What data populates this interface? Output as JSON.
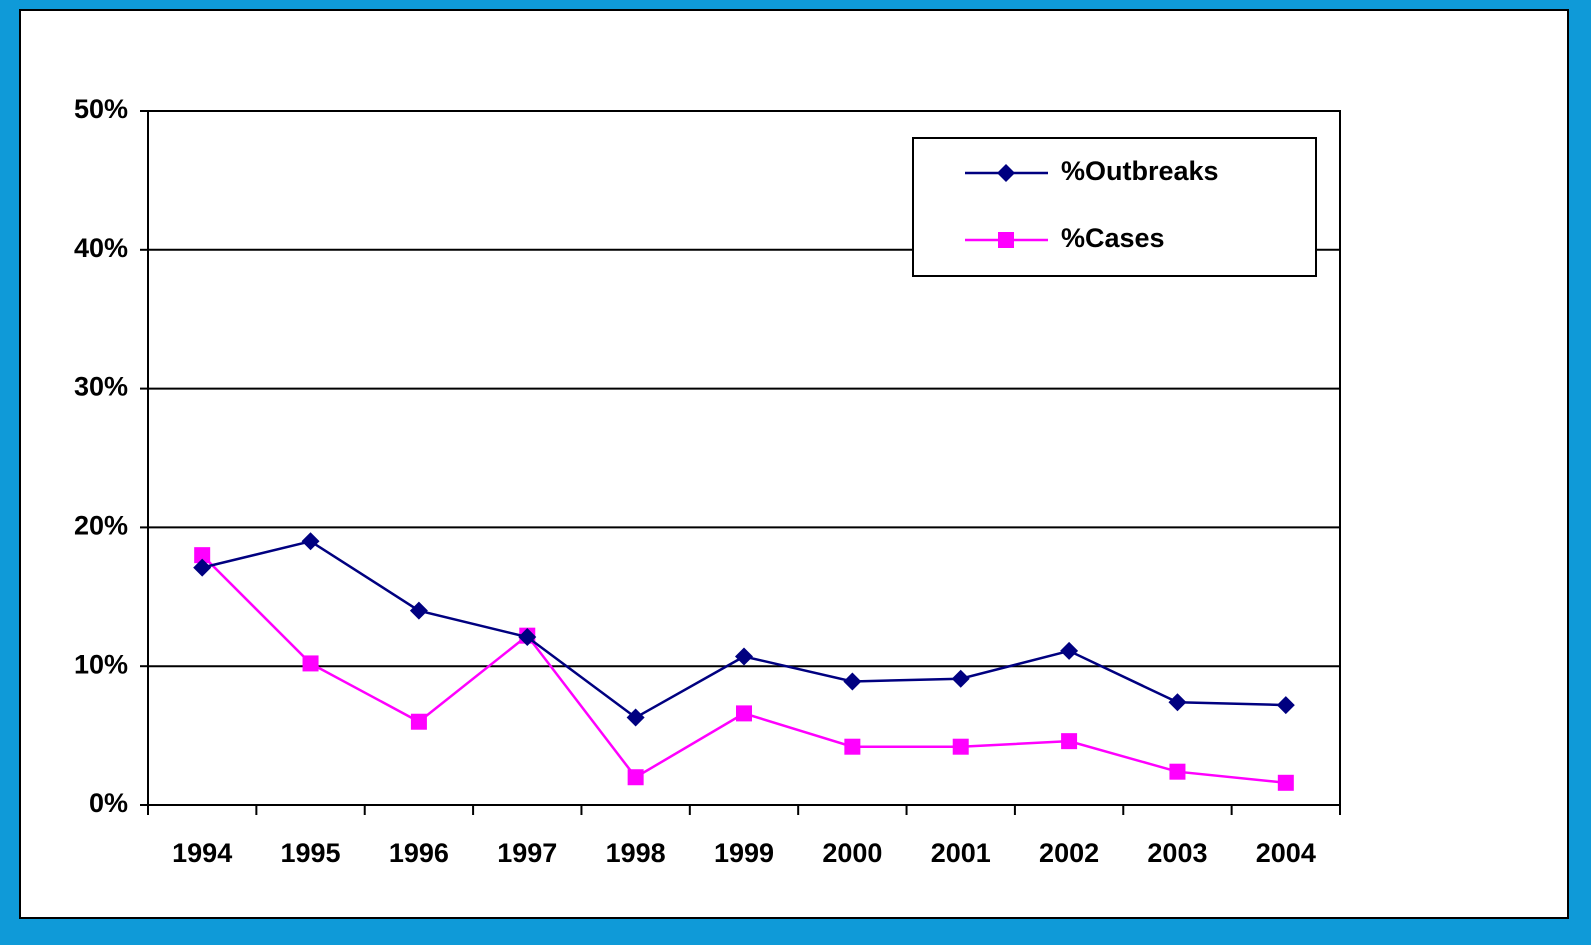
{
  "chart_data": {
    "type": "line",
    "categories": [
      "1994",
      "1995",
      "1996",
      "1997",
      "1998",
      "1999",
      "2000",
      "2001",
      "2002",
      "2003",
      "2004"
    ],
    "series": [
      {
        "name": "%Outbreaks",
        "color": "#000080",
        "marker": "diamond",
        "values": [
          17.1,
          19.0,
          14.0,
          12.1,
          6.3,
          10.7,
          8.9,
          9.1,
          11.1,
          7.4,
          7.2
        ]
      },
      {
        "name": "%Cases",
        "color": "#ff00ff",
        "marker": "square",
        "values": [
          18.0,
          10.2,
          6.0,
          12.2,
          2.0,
          6.6,
          4.2,
          4.2,
          4.6,
          2.4,
          1.6
        ]
      }
    ],
    "ylim": [
      0,
      50
    ],
    "yticks": [
      {
        "value": 0,
        "label": "0%"
      },
      {
        "value": 10,
        "label": "10%"
      },
      {
        "value": 20,
        "label": "20%"
      },
      {
        "value": 30,
        "label": "30%"
      },
      {
        "value": 40,
        "label": "40%"
      },
      {
        "value": 50,
        "label": "50%"
      }
    ],
    "grid": true,
    "legend": "upper right"
  }
}
